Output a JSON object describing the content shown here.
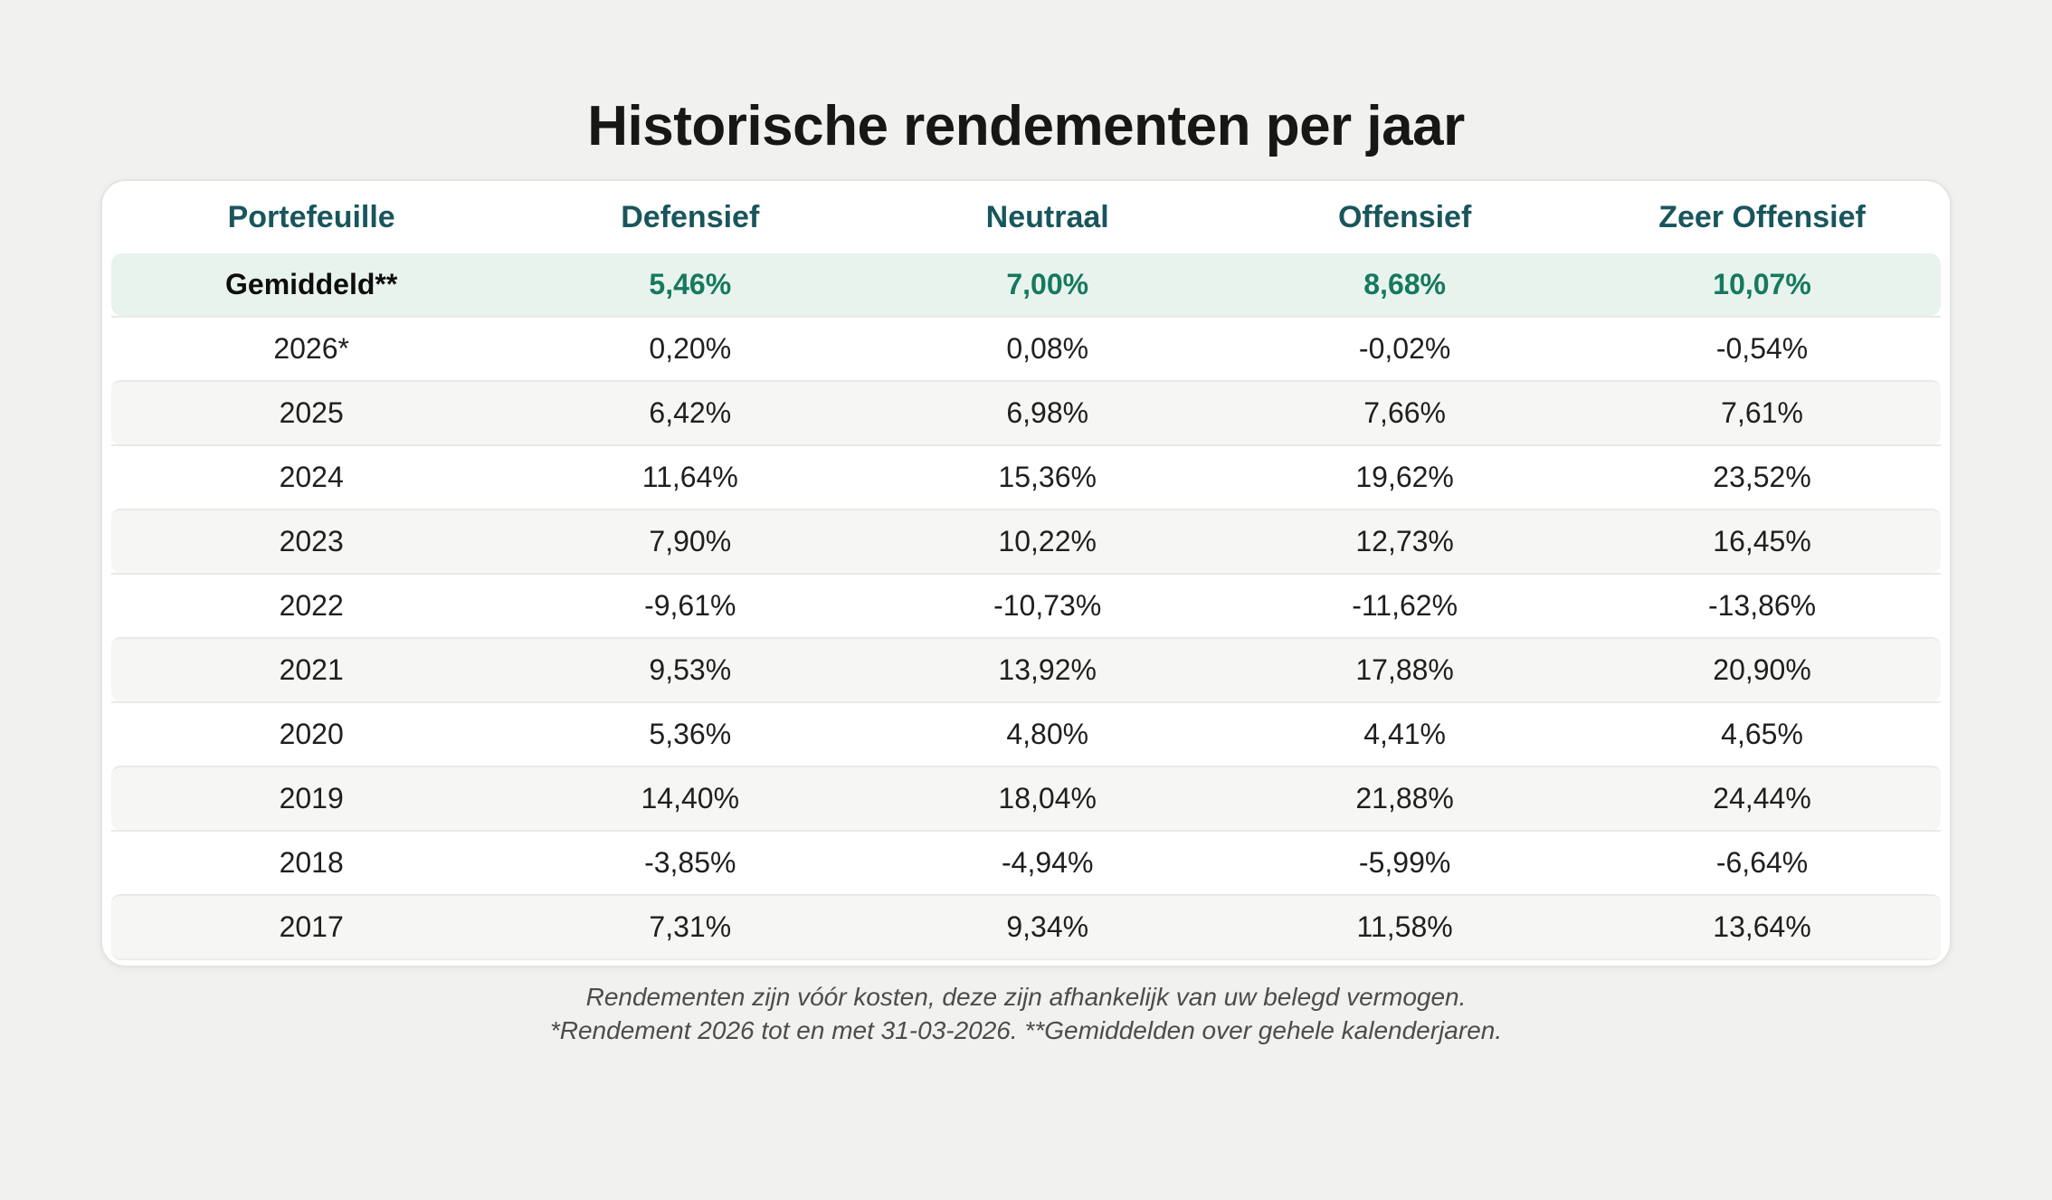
{
  "page": {
    "title": "Historische rendementen per jaar"
  },
  "table": {
    "columns": [
      "Portefeuille",
      "Defensief",
      "Neutraal",
      "Offensief",
      "Zeer Offensief"
    ],
    "average_row": {
      "label": "Gemiddeld**",
      "values": [
        "5,46%",
        "7,00%",
        "8,68%",
        "10,07%"
      ]
    },
    "rows": [
      {
        "year": "2026*",
        "values": [
          "0,20%",
          "0,08%",
          "-0,02%",
          "-0,54%"
        ]
      },
      {
        "year": "2025",
        "values": [
          "6,42%",
          "6,98%",
          "7,66%",
          "7,61%"
        ]
      },
      {
        "year": "2024",
        "values": [
          "11,64%",
          "15,36%",
          "19,62%",
          "23,52%"
        ]
      },
      {
        "year": "2023",
        "values": [
          "7,90%",
          "10,22%",
          "12,73%",
          "16,45%"
        ]
      },
      {
        "year": "2022",
        "values": [
          "-9,61%",
          "-10,73%",
          "-11,62%",
          "-13,86%"
        ]
      },
      {
        "year": "2021",
        "values": [
          "9,53%",
          "13,92%",
          "17,88%",
          "20,90%"
        ]
      },
      {
        "year": "2020",
        "values": [
          "5,36%",
          "4,80%",
          "4,41%",
          "4,65%"
        ]
      },
      {
        "year": "2019",
        "values": [
          "14,40%",
          "18,04%",
          "21,88%",
          "24,44%"
        ]
      },
      {
        "year": "2018",
        "values": [
          "-3,85%",
          "-4,94%",
          "-5,99%",
          "-6,64%"
        ]
      },
      {
        "year": "2017",
        "values": [
          "7,31%",
          "9,34%",
          "11,58%",
          "13,64%"
        ]
      }
    ]
  },
  "footnotes": [
    "Rendementen zijn vóór kosten, deze zijn afhankelijk van uw belegd vermogen.",
    "*Rendement 2026 tot en met 31-03-2026. **Gemiddelden over gehele kalenderjaren."
  ],
  "colors": {
    "page_bg": "#f1f1ef",
    "card_bg": "#ffffff",
    "card_border": "#e4e4e2",
    "title_text": "#171716",
    "header_text": "#19565c",
    "average_row_bg": "#e9f3ed",
    "average_value_text": "#15795f",
    "stripe_row_bg": "#f6f6f5",
    "row_divider": "#e9e9e7",
    "body_text": "#1f1f1f",
    "footnote_text": "#4c4c4c"
  },
  "chart_data": {
    "type": "table",
    "title": "Historische rendementen per jaar",
    "categories": [
      "2026*",
      "2025",
      "2024",
      "2023",
      "2022",
      "2021",
      "2020",
      "2019",
      "2018",
      "2017"
    ],
    "series": [
      {
        "name": "Defensief",
        "average": 5.46,
        "values": [
          0.2,
          6.42,
          11.64,
          7.9,
          -9.61,
          9.53,
          5.36,
          14.4,
          -3.85,
          7.31
        ]
      },
      {
        "name": "Neutraal",
        "average": 7.0,
        "values": [
          0.08,
          6.98,
          15.36,
          10.22,
          -10.73,
          13.92,
          4.8,
          18.04,
          -4.94,
          9.34
        ]
      },
      {
        "name": "Offensief",
        "average": 8.68,
        "values": [
          -0.02,
          7.66,
          19.62,
          12.73,
          -11.62,
          17.88,
          4.41,
          21.88,
          -5.99,
          11.58
        ]
      },
      {
        "name": "Zeer Offensief",
        "average": 10.07,
        "values": [
          -0.54,
          7.61,
          23.52,
          16.45,
          -13.86,
          20.9,
          4.65,
          24.44,
          -6.64,
          13.64
        ]
      }
    ],
    "value_unit": "percent",
    "value_format": "comma decimal separator",
    "notes": "Averages (Gemiddeld**) computed over whole calendar years; 2026* is year-to-date through 31-03-2026"
  }
}
